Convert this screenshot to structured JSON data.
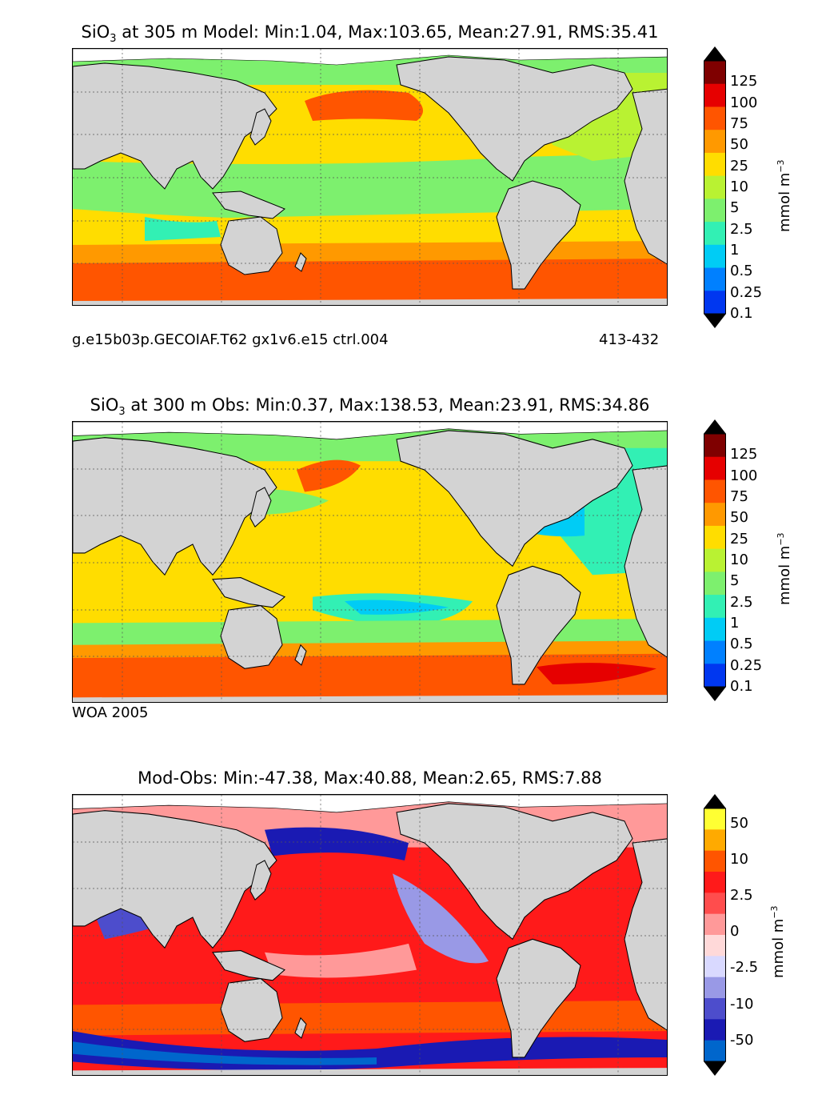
{
  "panels": [
    {
      "title_var": "SiO",
      "title_sub": "3",
      "title_rest": " at 305 m Model: Min:1.04, Max:103.65, Mean:27.91, RMS:35.41",
      "caption_left": "g.e15b03p.GECOIAF.T62 gx1v6.e15 ctrl.004",
      "caption_right": "413-432",
      "colorbar": {
        "labels": [
          "125",
          "100",
          "75",
          "50",
          "25",
          "10",
          "5",
          "2.5",
          "1",
          "0.5",
          "0.25",
          "0.1"
        ],
        "colors": [
          "#7f0000",
          "#e60000",
          "#ff5500",
          "#ff9900",
          "#ffdd00",
          "#b9f232",
          "#7df06e",
          "#32f0b4",
          "#00ccf5",
          "#0080ff",
          "#0037f0",
          "#0000cc",
          "#00007f"
        ],
        "unit": "mmol m",
        "unit_exp": "−3"
      }
    },
    {
      "title_var": "SiO",
      "title_sub": "3",
      "title_rest": " at 300 m Obs: Min:0.37, Max:138.53, Mean:23.91, RMS:34.86",
      "caption_left": "WOA 2005",
      "caption_right": "",
      "colorbar": {
        "labels": [
          "125",
          "100",
          "75",
          "50",
          "25",
          "10",
          "5",
          "2.5",
          "1",
          "0.5",
          "0.25",
          "0.1"
        ],
        "colors": [
          "#7f0000",
          "#e60000",
          "#ff5500",
          "#ff9900",
          "#ffdd00",
          "#b9f232",
          "#7df06e",
          "#32f0b4",
          "#00ccf5",
          "#0080ff",
          "#0037f0",
          "#0000cc",
          "#00007f"
        ],
        "unit": "mmol m",
        "unit_exp": "−3"
      }
    },
    {
      "title_var": "",
      "title_sub": "",
      "title_rest": "Mod-Obs: Min:-47.38, Max:40.88, Mean:2.65, RMS:7.88",
      "caption_left": "",
      "caption_right": "",
      "colorbar": {
        "labels": [
          "50",
          "10",
          "2.5",
          "0",
          "-2.5",
          "-10",
          "-50"
        ],
        "colors": [
          "#ffff33",
          "#ffaa00",
          "#ff5500",
          "#ff1a1a",
          "#ff4d4d",
          "#ff9999",
          "#ffd9d9",
          "#d9d9ff",
          "#9999e6",
          "#4d4dcc",
          "#1a1ab3",
          "#0066cc",
          "#00b3e6",
          "#00ffff"
        ],
        "unit": "mmol m",
        "unit_exp": "−3"
      }
    }
  ]
}
